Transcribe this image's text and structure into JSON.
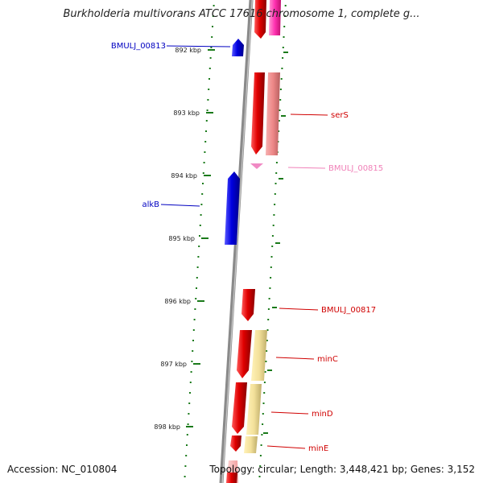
{
  "viewer": {
    "title": "Burkholderia multivorans ATCC 17616 chromosome 1, complete g...",
    "accession_label": "Accession: NC_010804",
    "topology_label": "Topology: circular;",
    "length_label": "Length: 3,448,421 bp;",
    "genes_label": "Genes: 3,152"
  },
  "colors": {
    "forward_cds": "#e00000",
    "reverse_cds": "#0000e0",
    "rna": "#ff3fb0",
    "tick": "#1a7a1a",
    "backbone": "#8a8a8a"
  },
  "scale": {
    "unit": "kbp",
    "ticks": [
      "892 kbp",
      "893 kbp",
      "894 kbp",
      "895 kbp",
      "896 kbp",
      "897 kbp",
      "898 kbp"
    ]
  },
  "gene_labels": [
    {
      "name": "BMULJ_00813",
      "color": "#0000c0"
    },
    {
      "name": "serS",
      "color": "#d00000"
    },
    {
      "name": "BMULJ_00815",
      "color": "#f080b8"
    },
    {
      "name": "alkB",
      "color": "#0000c0"
    },
    {
      "name": "BMULJ_00817",
      "color": "#d00000"
    },
    {
      "name": "minC",
      "color": "#d00000"
    },
    {
      "name": "minD",
      "color": "#d00000"
    },
    {
      "name": "minE",
      "color": "#d00000"
    }
  ]
}
